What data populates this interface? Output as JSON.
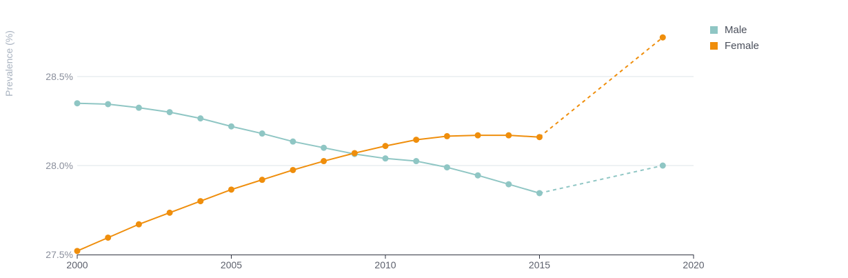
{
  "chart_data": {
    "type": "line",
    "ylabel": "Prevalence (%)",
    "xlim": [
      2000,
      2020
    ],
    "ylim": [
      27.5,
      28.75
    ],
    "xticks": [
      "2000",
      "2005",
      "2010",
      "2015",
      "2020"
    ],
    "yticks": [
      {
        "value": 27.5,
        "label": "27.5%"
      },
      {
        "value": 28.0,
        "label": "28.0%"
      },
      {
        "value": 28.5,
        "label": "28.5%"
      }
    ],
    "grid": true,
    "legend_position": "top-right",
    "series": [
      {
        "name": "Male",
        "color": "#8fc6c4",
        "points": [
          [
            2000,
            28.35
          ],
          [
            2001,
            28.345
          ],
          [
            2002,
            28.325
          ],
          [
            2003,
            28.3
          ],
          [
            2004,
            28.265
          ],
          [
            2005,
            28.22
          ],
          [
            2006,
            28.18
          ],
          [
            2007,
            28.135
          ],
          [
            2008,
            28.1
          ],
          [
            2009,
            28.065
          ],
          [
            2010,
            28.04
          ],
          [
            2011,
            28.025
          ],
          [
            2012,
            27.99
          ],
          [
            2013,
            27.945
          ],
          [
            2014,
            27.895
          ],
          [
            2015,
            27.845
          ],
          [
            2019,
            28.0
          ]
        ],
        "dashed_from_index": 15
      },
      {
        "name": "Female",
        "color": "#ef8e0c",
        "points": [
          [
            2000,
            27.52
          ],
          [
            2001,
            27.595
          ],
          [
            2002,
            27.67
          ],
          [
            2003,
            27.735
          ],
          [
            2004,
            27.8
          ],
          [
            2005,
            27.865
          ],
          [
            2006,
            27.92
          ],
          [
            2007,
            27.975
          ],
          [
            2008,
            28.025
          ],
          [
            2009,
            28.07
          ],
          [
            2010,
            28.11
          ],
          [
            2011,
            28.145
          ],
          [
            2012,
            28.165
          ],
          [
            2013,
            28.17
          ],
          [
            2014,
            28.17
          ],
          [
            2015,
            28.16
          ],
          [
            2019,
            28.72
          ]
        ],
        "dashed_from_index": 15
      }
    ]
  }
}
